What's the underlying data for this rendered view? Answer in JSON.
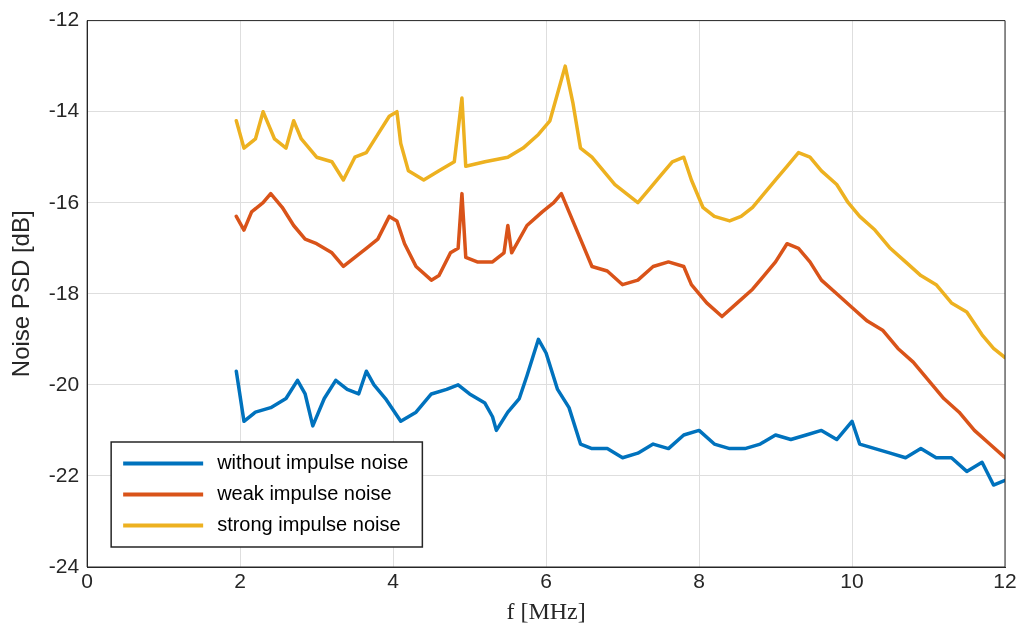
{
  "chart_data": {
    "type": "line",
    "xlabel": "f [MHz]",
    "ylabel": "Noise PSD [dB]",
    "xlim": [
      0,
      12
    ],
    "xticks": [
      0,
      2,
      4,
      6,
      8,
      10,
      12
    ],
    "ylim": [
      -24,
      -12
    ],
    "yticks": [
      -24,
      -22,
      -20,
      -18,
      -16,
      -14,
      -12
    ],
    "grid": true,
    "legend": "bottom left",
    "marker": "none",
    "line_style": "solid",
    "series": [
      {
        "name": "without impulse noise",
        "color": "#0072bd",
        "x": [
          1.95,
          2.05,
          2.2,
          2.4,
          2.6,
          2.75,
          2.85,
          2.95,
          3.1,
          3.25,
          3.4,
          3.55,
          3.65,
          3.75,
          3.9,
          4.1,
          4.3,
          4.5,
          4.7,
          4.85,
          5.0,
          5.2,
          5.3,
          5.35,
          5.5,
          5.65,
          5.75,
          5.9,
          6.0,
          6.15,
          6.3,
          6.45,
          6.6,
          6.8,
          7.0,
          7.2,
          7.4,
          7.6,
          7.8,
          8.0,
          8.2,
          8.4,
          8.6,
          8.8,
          9.0,
          9.2,
          9.4,
          9.6,
          9.8,
          10.0,
          10.1,
          10.3,
          10.5,
          10.7,
          10.9,
          11.1,
          11.3,
          11.5,
          11.7,
          11.85,
          12
        ],
        "values": [
          -19.7,
          -20.8,
          -20.6,
          -20.5,
          -20.3,
          -19.9,
          -20.2,
          -20.9,
          -20.3,
          -19.9,
          -20.1,
          -20.2,
          -19.7,
          -20.0,
          -20.3,
          -20.8,
          -20.6,
          -20.2,
          -20.1,
          -20.0,
          -20.2,
          -20.4,
          -20.7,
          -21.0,
          -20.6,
          -20.3,
          -19.8,
          -19.0,
          -19.3,
          -20.1,
          -20.5,
          -21.3,
          -21.4,
          -21.4,
          -21.6,
          -21.5,
          -21.3,
          -21.4,
          -21.1,
          -21.0,
          -21.3,
          -21.4,
          -21.4,
          -21.3,
          -21.1,
          -21.2,
          -21.1,
          -21.0,
          -21.2,
          -20.8,
          -21.3,
          -21.4,
          -21.5,
          -21.6,
          -21.4,
          -21.6,
          -21.6,
          -21.9,
          -21.7,
          -22.2,
          -22.1
        ]
      },
      {
        "name": "weak impulse noise",
        "color": "#d95319",
        "x": [
          1.95,
          2.05,
          2.15,
          2.3,
          2.4,
          2.55,
          2.7,
          2.85,
          3.0,
          3.2,
          3.35,
          3.5,
          3.65,
          3.8,
          3.95,
          4.05,
          4.15,
          4.3,
          4.5,
          4.6,
          4.75,
          4.85,
          4.9,
          4.95,
          5.1,
          5.3,
          5.45,
          5.5,
          5.55,
          5.75,
          5.95,
          6.1,
          6.2,
          6.3,
          6.45,
          6.6,
          6.8,
          7.0,
          7.2,
          7.4,
          7.6,
          7.8,
          7.9,
          8.1,
          8.3,
          8.5,
          8.7,
          8.85,
          9.0,
          9.15,
          9.3,
          9.45,
          9.6,
          9.8,
          10.0,
          10.2,
          10.4,
          10.6,
          10.8,
          11.0,
          11.2,
          11.4,
          11.6,
          11.8,
          12
        ],
        "values": [
          -16.3,
          -16.6,
          -16.2,
          -16.0,
          -15.8,
          -16.1,
          -16.5,
          -16.8,
          -16.9,
          -17.1,
          -17.4,
          -17.2,
          -17.0,
          -16.8,
          -16.3,
          -16.4,
          -16.9,
          -17.4,
          -17.7,
          -17.6,
          -17.1,
          -17.0,
          -15.8,
          -17.2,
          -17.3,
          -17.3,
          -17.1,
          -16.5,
          -17.1,
          -16.5,
          -16.2,
          -16.0,
          -15.8,
          -16.2,
          -16.8,
          -17.4,
          -17.5,
          -17.8,
          -17.7,
          -17.4,
          -17.3,
          -17.4,
          -17.8,
          -18.2,
          -18.5,
          -18.2,
          -17.9,
          -17.6,
          -17.3,
          -16.9,
          -17.0,
          -17.3,
          -17.7,
          -18.0,
          -18.3,
          -18.6,
          -18.8,
          -19.2,
          -19.5,
          -19.9,
          -20.3,
          -20.6,
          -21.0,
          -21.3,
          -21.6
        ]
      },
      {
        "name": "strong impulse noise",
        "color": "#edb120",
        "x": [
          1.95,
          2.05,
          2.2,
          2.3,
          2.45,
          2.6,
          2.7,
          2.8,
          3.0,
          3.2,
          3.35,
          3.5,
          3.65,
          3.8,
          3.95,
          4.05,
          4.1,
          4.2,
          4.4,
          4.6,
          4.8,
          4.9,
          4.95,
          5.2,
          5.5,
          5.7,
          5.9,
          6.05,
          6.15,
          6.25,
          6.35,
          6.45,
          6.6,
          6.75,
          6.9,
          7.05,
          7.2,
          7.35,
          7.5,
          7.65,
          7.8,
          7.9,
          8.05,
          8.2,
          8.4,
          8.55,
          8.7,
          8.85,
          9.0,
          9.15,
          9.3,
          9.45,
          9.6,
          9.8,
          9.95,
          10.1,
          10.3,
          10.5,
          10.7,
          10.9,
          11.1,
          11.3,
          11.5,
          11.7,
          11.85,
          12
        ],
        "values": [
          -14.2,
          -14.8,
          -14.6,
          -14.0,
          -14.6,
          -14.8,
          -14.2,
          -14.6,
          -15.0,
          -15.1,
          -15.5,
          -15.0,
          -14.9,
          -14.5,
          -14.1,
          -14.0,
          -14.7,
          -15.3,
          -15.5,
          -15.3,
          -15.1,
          -13.7,
          -15.2,
          -15.1,
          -15.0,
          -14.8,
          -14.5,
          -14.2,
          -13.6,
          -13.0,
          -13.8,
          -14.8,
          -15.0,
          -15.3,
          -15.6,
          -15.8,
          -16.0,
          -15.7,
          -15.4,
          -15.1,
          -15.0,
          -15.5,
          -16.1,
          -16.3,
          -16.4,
          -16.3,
          -16.1,
          -15.8,
          -15.5,
          -15.2,
          -14.9,
          -15.0,
          -15.3,
          -15.6,
          -16.0,
          -16.3,
          -16.6,
          -17.0,
          -17.3,
          -17.6,
          -17.8,
          -18.2,
          -18.4,
          -18.9,
          -19.2,
          -19.4
        ]
      }
    ]
  }
}
